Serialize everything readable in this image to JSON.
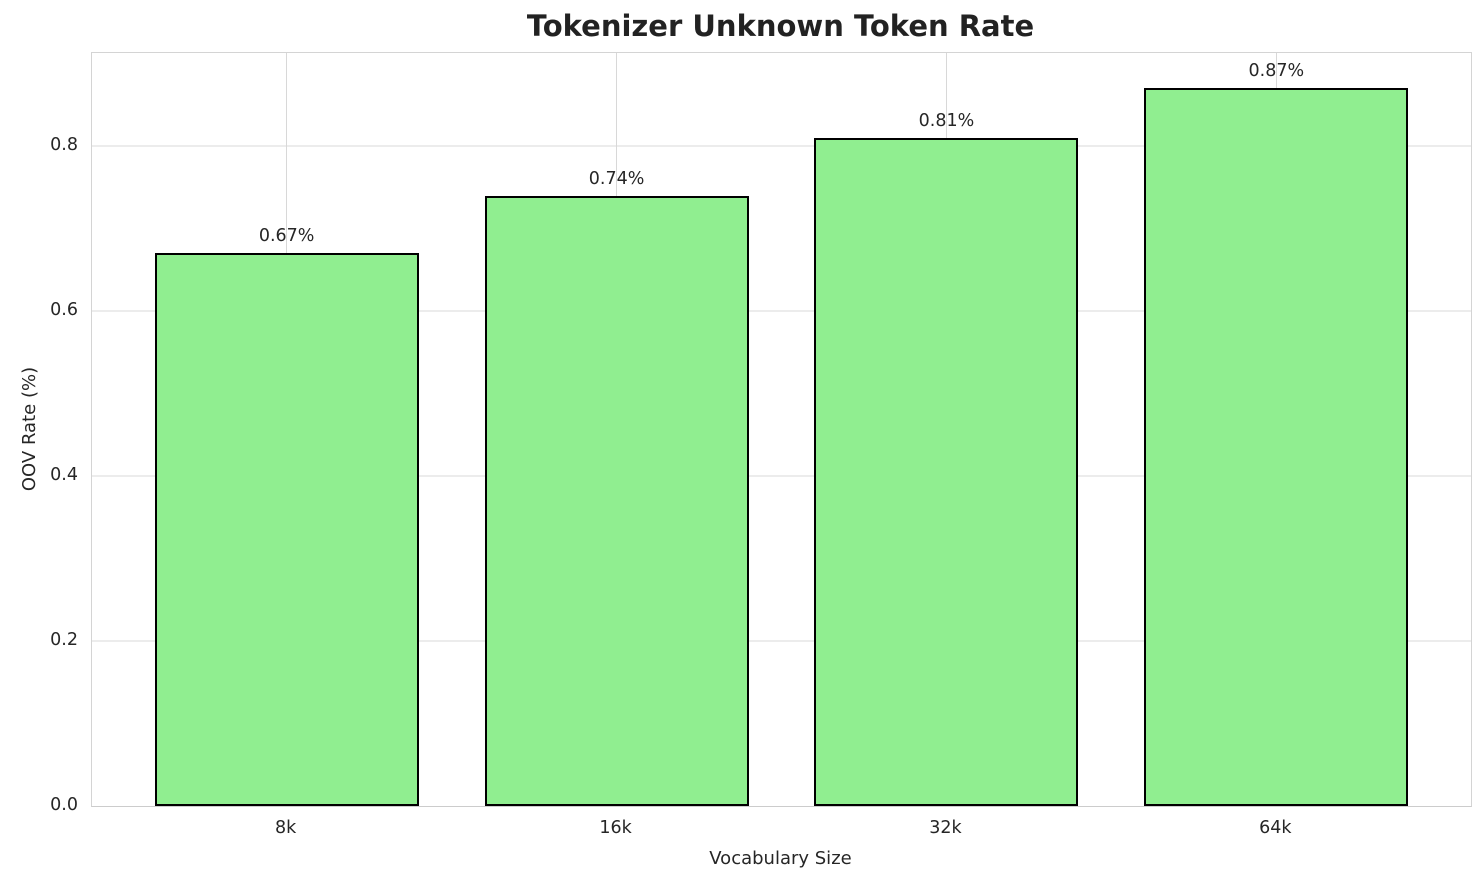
{
  "chart_data": {
    "type": "bar",
    "title": "Tokenizer Unknown Token Rate",
    "xlabel": "Vocabulary Size",
    "ylabel": "OOV Rate (%)",
    "categories": [
      "8k",
      "16k",
      "32k",
      "64k"
    ],
    "values": [
      0.67,
      0.74,
      0.81,
      0.87
    ],
    "bar_labels": [
      "0.67%",
      "0.74%",
      "0.81%",
      "0.87%"
    ],
    "yticks": [
      0.0,
      0.2,
      0.4,
      0.6,
      0.8
    ],
    "ytick_labels": [
      "0.0",
      "0.2",
      "0.4",
      "0.6",
      "0.8"
    ],
    "ylim": [
      0,
      0.913
    ],
    "xlim": [
      -0.59,
      3.59
    ],
    "bar_width": 0.8,
    "grid": true,
    "legend_position": "none",
    "colors": {
      "bar_fill": "#90EE90",
      "bar_edge": "#000000",
      "grid_horizontal": "#ececec",
      "grid_vertical": "#d8d8d8",
      "spine": "#d4d4d4",
      "text": "#262626"
    }
  }
}
